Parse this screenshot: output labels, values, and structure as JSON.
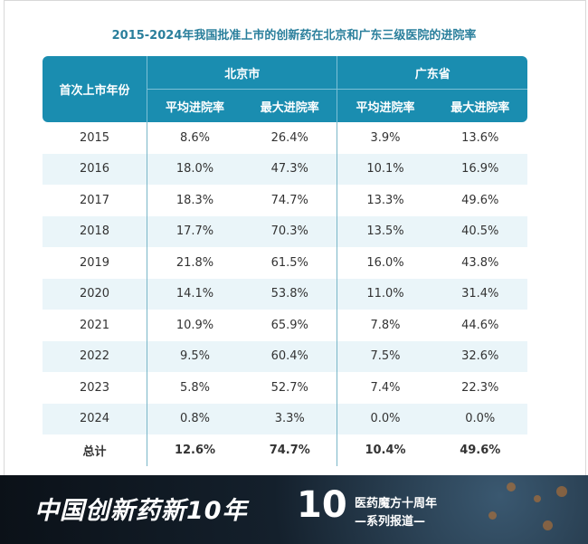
{
  "title": "2015-2024年我国批准上市的创新药在北京和广东三级医院的进院率",
  "header": {
    "year_col": "首次上市年份",
    "groups": [
      "北京市",
      "广东省"
    ],
    "sub": [
      "平均进院率",
      "最大进院率",
      "平均进院率",
      "最大进院率"
    ]
  },
  "rows": [
    [
      "2015",
      "8.6%",
      "26.4%",
      "3.9%",
      "13.6%"
    ],
    [
      "2016",
      "18.0%",
      "47.3%",
      "10.1%",
      "16.9%"
    ],
    [
      "2017",
      "18.3%",
      "74.7%",
      "13.3%",
      "49.6%"
    ],
    [
      "2018",
      "17.7%",
      "70.3%",
      "13.5%",
      "40.5%"
    ],
    [
      "2019",
      "21.8%",
      "61.5%",
      "16.0%",
      "43.8%"
    ],
    [
      "2020",
      "14.1%",
      "53.8%",
      "11.0%",
      "31.4%"
    ],
    [
      "2021",
      "10.9%",
      "65.9%",
      "7.8%",
      "44.6%"
    ],
    [
      "2022",
      "9.5%",
      "60.4%",
      "7.5%",
      "32.6%"
    ],
    [
      "2023",
      "5.8%",
      "52.7%",
      "7.4%",
      "22.3%"
    ],
    [
      "2024",
      "0.8%",
      "3.3%",
      "0.0%",
      "0.0%"
    ],
    [
      "总计",
      "12.6%",
      "74.7%",
      "10.4%",
      "49.6%"
    ]
  ],
  "banner": {
    "main": "中国创新药新10年",
    "logo": "10",
    "line1": "医药魔方十周年",
    "line2": "—系列报道—"
  },
  "colors": {
    "header": "#1a8db0",
    "title": "#2a7f9c",
    "stripe": "#eaf5f9"
  }
}
